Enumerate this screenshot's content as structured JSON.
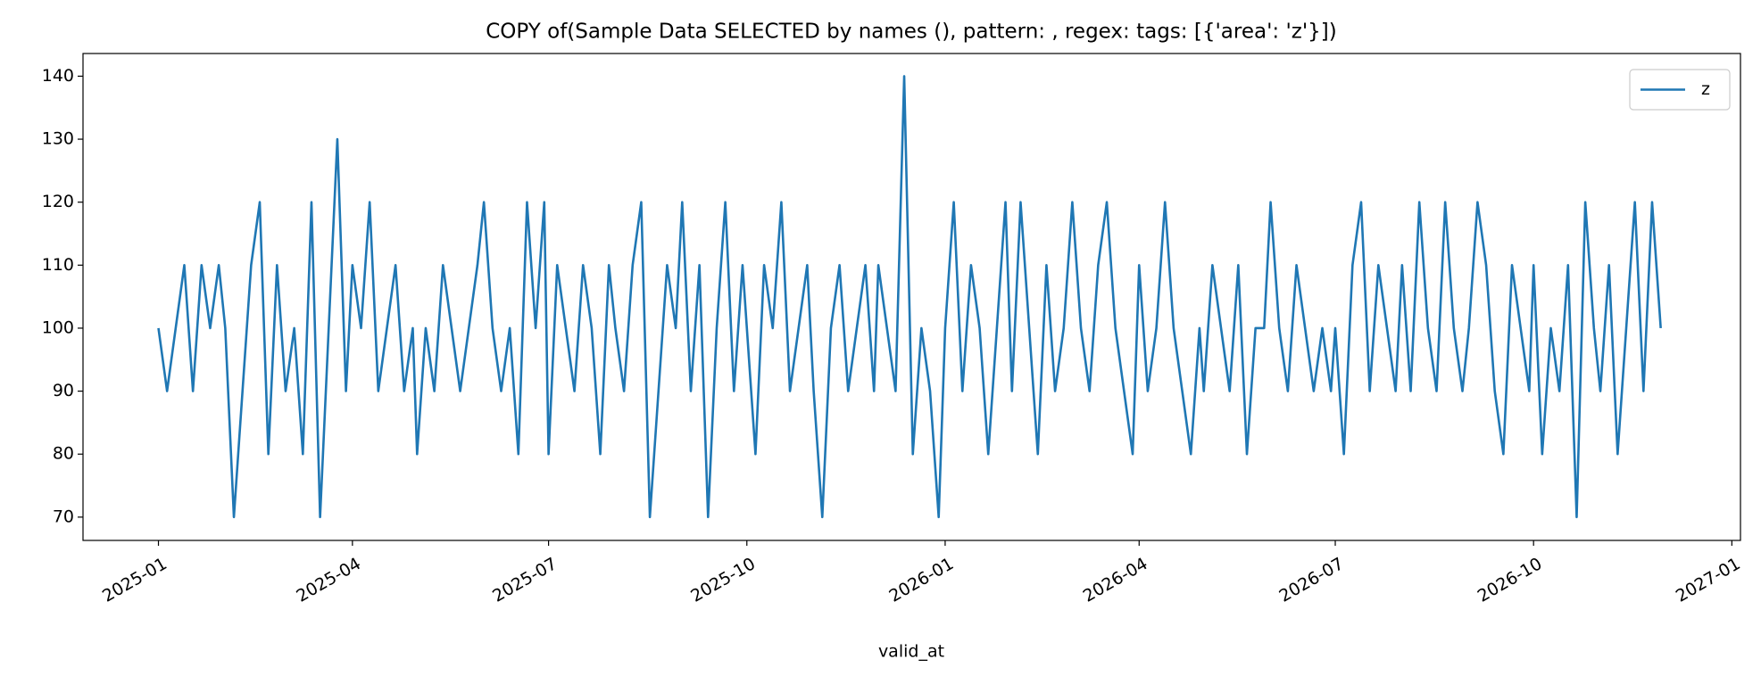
{
  "chart_data": {
    "type": "line",
    "title": "COPY of(Sample Data SELECTED by names (), pattern: , regex:  tags: [{'area': 'z'}])",
    "x_label": "valid_at",
    "x": [
      "2025-01-01",
      "2025-01-05",
      "2025-01-09",
      "2025-01-13",
      "2025-01-17",
      "2025-01-21",
      "2025-01-25",
      "2025-01-29",
      "2025-02-01",
      "2025-02-05",
      "2025-02-09",
      "2025-02-13",
      "2025-02-17",
      "2025-02-21",
      "2025-02-25",
      "2025-03-01",
      "2025-03-05",
      "2025-03-09",
      "2025-03-13",
      "2025-03-17",
      "2025-03-21",
      "2025-03-25",
      "2025-03-29",
      "2025-04-01",
      "2025-04-05",
      "2025-04-09",
      "2025-04-13",
      "2025-04-17",
      "2025-04-21",
      "2025-04-25",
      "2025-04-29",
      "2025-05-01",
      "2025-05-05",
      "2025-05-09",
      "2025-05-13",
      "2025-05-17",
      "2025-05-21",
      "2025-05-25",
      "2025-05-29",
      "2025-06-01",
      "2025-06-05",
      "2025-06-09",
      "2025-06-13",
      "2025-06-17",
      "2025-06-21",
      "2025-06-25",
      "2025-06-29",
      "2025-07-01",
      "2025-07-05",
      "2025-07-09",
      "2025-07-13",
      "2025-07-17",
      "2025-07-21",
      "2025-07-25",
      "2025-07-29",
      "2025-08-01",
      "2025-08-05",
      "2025-08-09",
      "2025-08-13",
      "2025-08-17",
      "2025-08-21",
      "2025-08-25",
      "2025-08-29",
      "2025-09-01",
      "2025-09-05",
      "2025-09-09",
      "2025-09-13",
      "2025-09-17",
      "2025-09-21",
      "2025-09-25",
      "2025-09-29",
      "2025-10-01",
      "2025-10-05",
      "2025-10-09",
      "2025-10-13",
      "2025-10-17",
      "2025-10-21",
      "2025-10-25",
      "2025-10-29",
      "2025-11-01",
      "2025-11-05",
      "2025-11-09",
      "2025-11-13",
      "2025-11-17",
      "2025-11-21",
      "2025-11-25",
      "2025-11-29",
      "2025-12-01",
      "2025-12-05",
      "2025-12-09",
      "2025-12-13",
      "2025-12-17",
      "2025-12-21",
      "2025-12-25",
      "2025-12-29",
      "2026-01-01",
      "2026-01-05",
      "2026-01-09",
      "2026-01-13",
      "2026-01-17",
      "2026-01-21",
      "2026-01-25",
      "2026-01-29",
      "2026-02-01",
      "2026-02-05",
      "2026-02-09",
      "2026-02-13",
      "2026-02-17",
      "2026-02-21",
      "2026-02-25",
      "2026-03-01",
      "2026-03-05",
      "2026-03-09",
      "2026-03-13",
      "2026-03-17",
      "2026-03-21",
      "2026-03-25",
      "2026-03-29",
      "2026-04-01",
      "2026-04-05",
      "2026-04-09",
      "2026-04-13",
      "2026-04-17",
      "2026-04-21",
      "2026-04-25",
      "2026-04-29",
      "2026-05-01",
      "2026-05-05",
      "2026-05-09",
      "2026-05-13",
      "2026-05-17",
      "2026-05-21",
      "2026-05-25",
      "2026-05-29",
      "2026-06-01",
      "2026-06-05",
      "2026-06-09",
      "2026-06-13",
      "2026-06-17",
      "2026-06-21",
      "2026-06-25",
      "2026-06-29",
      "2026-07-01",
      "2026-07-05",
      "2026-07-09",
      "2026-07-13",
      "2026-07-17",
      "2026-07-21",
      "2026-07-25",
      "2026-07-29",
      "2026-08-01",
      "2026-08-05",
      "2026-08-09",
      "2026-08-13",
      "2026-08-17",
      "2026-08-21",
      "2026-08-25",
      "2026-08-29",
      "2026-09-01",
      "2026-09-05",
      "2026-09-09",
      "2026-09-13",
      "2026-09-17",
      "2026-09-21",
      "2026-09-25",
      "2026-09-29",
      "2026-10-01",
      "2026-10-05",
      "2026-10-09",
      "2026-10-13",
      "2026-10-17",
      "2026-10-21",
      "2026-10-25",
      "2026-10-29",
      "2026-11-01",
      "2026-11-05",
      "2026-11-09",
      "2026-11-13",
      "2026-11-17",
      "2026-11-21",
      "2026-11-25",
      "2026-11-29"
    ],
    "series": [
      {
        "name": "z",
        "color": "#1f77b4",
        "values": [
          100,
          90,
          100,
          110,
          90,
          110,
          100,
          110,
          100,
          70,
          90,
          110,
          120,
          80,
          110,
          90,
          100,
          80,
          120,
          70,
          100,
          130,
          90,
          110,
          100,
          120,
          90,
          100,
          110,
          90,
          100,
          80,
          100,
          90,
          110,
          100,
          90,
          100,
          110,
          120,
          100,
          90,
          100,
          80,
          120,
          100,
          120,
          80,
          110,
          100,
          90,
          110,
          100,
          80,
          110,
          100,
          90,
          110,
          120,
          70,
          90,
          110,
          100,
          120,
          90,
          110,
          70,
          100,
          120,
          90,
          110,
          100,
          80,
          110,
          100,
          120,
          90,
          100,
          110,
          90,
          70,
          100,
          110,
          90,
          100,
          110,
          90,
          110,
          100,
          90,
          140,
          80,
          100,
          90,
          70,
          100,
          120,
          90,
          110,
          100,
          80,
          100,
          120,
          90,
          120,
          100,
          80,
          110,
          90,
          100,
          120,
          100,
          90,
          110,
          120,
          100,
          90,
          80,
          110,
          90,
          100,
          120,
          100,
          90,
          80,
          100,
          90,
          110,
          100,
          90,
          110,
          80,
          100,
          100,
          120,
          100,
          90,
          110,
          100,
          90,
          100,
          90,
          100,
          80,
          110,
          120,
          90,
          110,
          100,
          90,
          110,
          90,
          120,
          100,
          90,
          120,
          100,
          90,
          100,
          120,
          110,
          90,
          80,
          110,
          100,
          90,
          110,
          80,
          100,
          90,
          110,
          70,
          120,
          100,
          90,
          110,
          80,
          100,
          120,
          90,
          120,
          100
        ]
      }
    ],
    "xlim": [
      "2024-11-27",
      "2027-01-05"
    ],
    "xticks": [
      {
        "value": "2025-01-01",
        "label": "2025-01"
      },
      {
        "value": "2025-04-01",
        "label": "2025-04"
      },
      {
        "value": "2025-07-01",
        "label": "2025-07"
      },
      {
        "value": "2025-10-01",
        "label": "2025-10"
      },
      {
        "value": "2026-01-01",
        "label": "2026-01"
      },
      {
        "value": "2026-04-01",
        "label": "2026-04"
      },
      {
        "value": "2026-07-01",
        "label": "2026-07"
      },
      {
        "value": "2026-10-01",
        "label": "2026-10"
      },
      {
        "value": "2027-01-01",
        "label": "2027-01"
      }
    ],
    "ylim": [
      66.3,
      143.6
    ],
    "yticks": [
      70,
      80,
      90,
      100,
      110,
      120,
      130,
      140
    ],
    "grid": false,
    "legend": "upper right"
  }
}
